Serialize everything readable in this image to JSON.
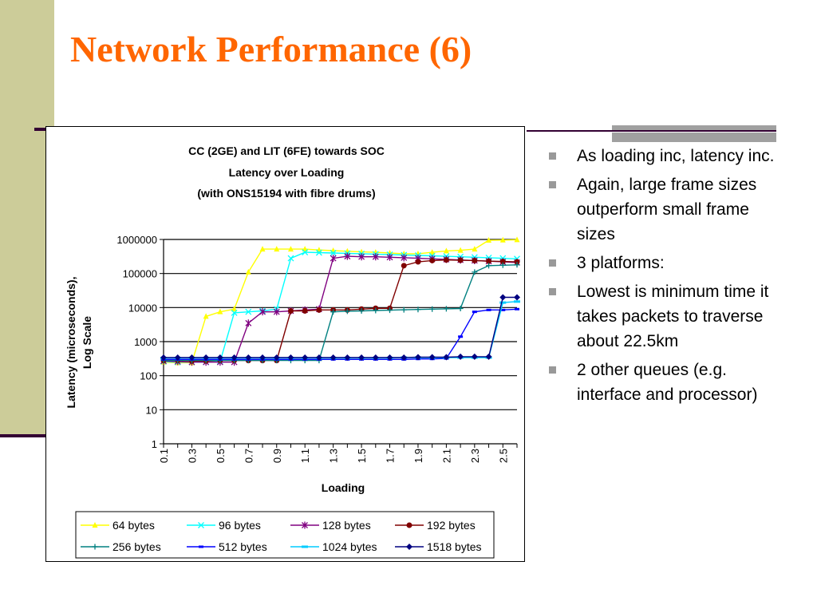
{
  "slide": {
    "title": "Network Performance (6)",
    "colors": {
      "title": "#FF6600",
      "left_band": "#CCCC99",
      "rule": "#330033",
      "bar": "#A0A0A0",
      "bullet": "#999999"
    }
  },
  "bullets": [
    {
      "text": "As loading inc, latency inc."
    },
    {
      "text": "Again, large frame sizes outperform small frame sizes"
    },
    {
      "text": "3 platforms:"
    },
    {
      "text": "Lowest is minimum time it takes packets to traverse about 22.5km"
    },
    {
      "text": "2 other queues (e.g. interface and processor)"
    }
  ],
  "chart_data": {
    "type": "line",
    "title": "CC (2GE) and LIT (6FE) towards SOC",
    "subtitle": "Latency over Loading",
    "subtitle2": "(with ONS15194 with fibre drums)",
    "xlabel": "Loading",
    "ylabel": "Latency (microseconds),",
    "ylabel2": "Log Scale",
    "y_scale": "log",
    "ylim": [
      1,
      1000000
    ],
    "y_ticks": [
      1,
      10,
      100,
      1000,
      10000,
      100000,
      1000000
    ],
    "y_tick_labels": [
      "1",
      "10",
      "100",
      "1000",
      "10000",
      "100000",
      "1000000"
    ],
    "x_ticks": [
      0.1,
      0.3,
      0.5,
      0.7,
      0.9,
      1.1,
      1.3,
      1.5,
      1.7,
      1.9,
      2.1,
      2.3,
      2.5
    ],
    "x_tick_labels": [
      "0.1",
      "0.3",
      "0.5",
      "0.7",
      "0.9",
      "1.1",
      "1.3",
      "1.5",
      "1.7",
      "1.9",
      "2.1",
      "2.3",
      "2.5"
    ],
    "x_range": [
      0.1,
      2.6
    ],
    "grid": "horizontal",
    "legend_position": "bottom",
    "x": [
      0.1,
      0.2,
      0.3,
      0.4,
      0.5,
      0.6,
      0.7,
      0.8,
      0.9,
      1.0,
      1.1,
      1.2,
      1.3,
      1.4,
      1.5,
      1.6,
      1.7,
      1.8,
      1.9,
      2.0,
      2.1,
      2.2,
      2.3,
      2.4,
      2.5,
      2.6
    ],
    "series": [
      {
        "name": "64 bytes",
        "color": "#FFFF00",
        "marker": "triangle",
        "values": [
          250,
          240,
          240,
          5500,
          7500,
          9000,
          110000,
          520000,
          520000,
          520000,
          520000,
          490000,
          470000,
          450000,
          430000,
          420000,
          400000,
          380000,
          380000,
          420000,
          460000,
          480000,
          520000,
          950000,
          960000,
          980000
        ]
      },
      {
        "name": "96 bytes",
        "color": "#00FFFF",
        "marker": "x",
        "values": [
          260,
          250,
          250,
          250,
          260,
          7000,
          7500,
          8000,
          9000,
          280000,
          420000,
          410000,
          400000,
          390000,
          380000,
          370000,
          360000,
          350000,
          340000,
          330000,
          320000,
          310000,
          300000,
          290000,
          280000,
          270000
        ]
      },
      {
        "name": "128 bytes",
        "color": "#800080",
        "marker": "star",
        "values": [
          270,
          260,
          250,
          250,
          250,
          250,
          3500,
          7500,
          7500,
          8000,
          8500,
          9000,
          280000,
          320000,
          310000,
          310000,
          300000,
          290000,
          280000,
          270000,
          260000,
          250000,
          240000,
          230000,
          220000,
          210000
        ]
      },
      {
        "name": "192 bytes",
        "color": "#800000",
        "marker": "circle",
        "values": [
          280,
          280,
          270,
          270,
          280,
          280,
          280,
          280,
          280,
          8000,
          8000,
          8500,
          8500,
          8500,
          9000,
          9500,
          9500,
          170000,
          220000,
          240000,
          250000,
          245000,
          240000,
          230000,
          225000,
          220000
        ]
      },
      {
        "name": "256 bytes",
        "color": "#008080",
        "marker": "plus",
        "values": [
          280,
          280,
          280,
          280,
          280,
          280,
          280,
          280,
          280,
          280,
          280,
          280,
          7500,
          7800,
          8000,
          8200,
          8400,
          8600,
          8800,
          9000,
          9200,
          9400,
          110000,
          170000,
          175000,
          180000
        ]
      },
      {
        "name": "512 bytes",
        "color": "#0000FF",
        "marker": "dash",
        "values": [
          300,
          300,
          300,
          300,
          300,
          300,
          300,
          300,
          300,
          300,
          300,
          300,
          300,
          300,
          300,
          300,
          300,
          300,
          310,
          310,
          320,
          1400,
          7500,
          8500,
          8500,
          9000
        ]
      },
      {
        "name": "1024 bytes",
        "color": "#00CCFF",
        "marker": "bar",
        "values": [
          330,
          330,
          330,
          330,
          330,
          330,
          330,
          330,
          330,
          330,
          330,
          330,
          330,
          330,
          330,
          330,
          330,
          340,
          340,
          340,
          340,
          340,
          340,
          340,
          14000,
          15000
        ]
      },
      {
        "name": "1518 bytes",
        "color": "#000080",
        "marker": "diamond",
        "values": [
          340,
          340,
          340,
          340,
          340,
          340,
          340,
          340,
          340,
          340,
          340,
          340,
          340,
          340,
          340,
          340,
          340,
          340,
          350,
          350,
          350,
          360,
          360,
          360,
          20000,
          20000
        ]
      }
    ]
  }
}
